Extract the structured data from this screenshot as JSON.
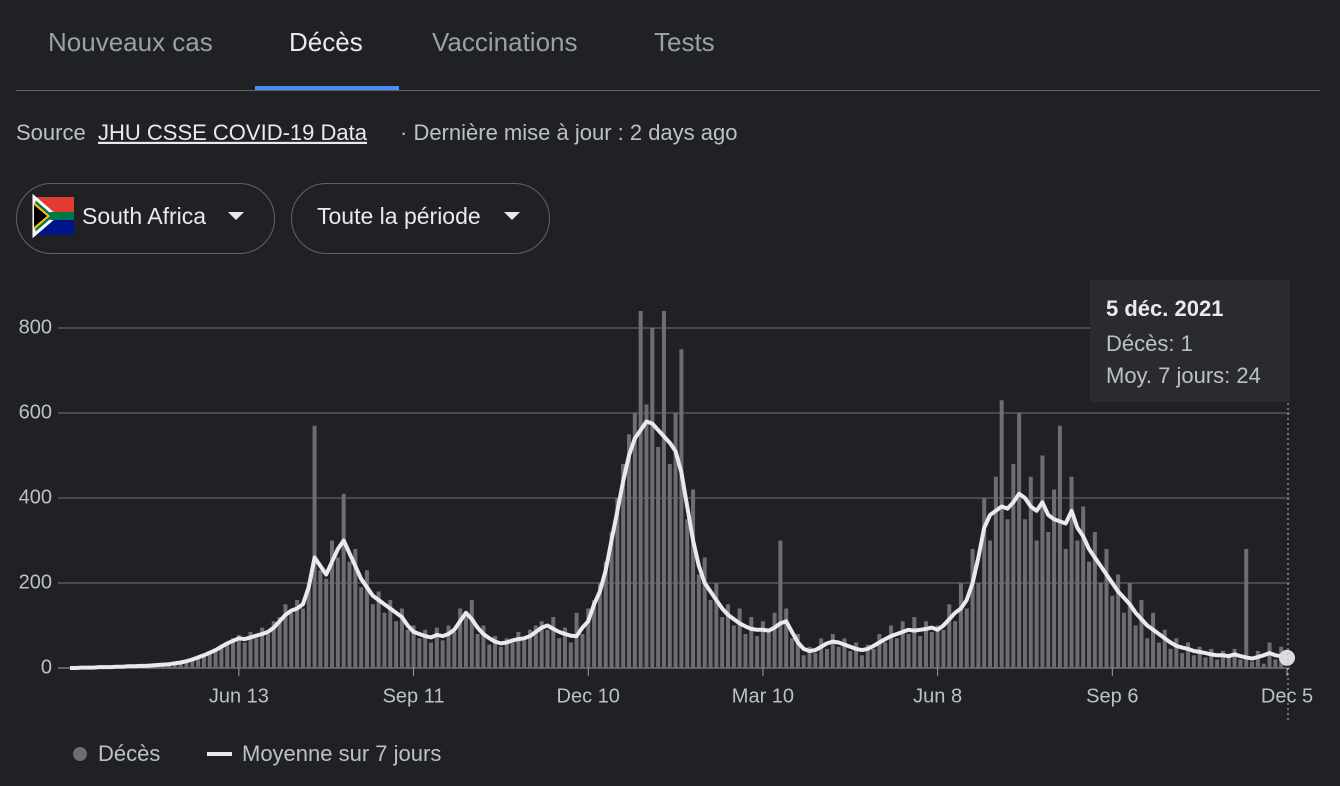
{
  "tabs": [
    "Nouveaux cas",
    "Décès",
    "Vaccinations",
    "Tests"
  ],
  "source": {
    "prefix": "Source",
    "link": "JHU CSSE COVID-19 Data",
    "suffix": "· Dernière mise à jour : 2 days ago"
  },
  "filters": {
    "region": "South Africa",
    "period": "Toute la période"
  },
  "tooltip": {
    "date": "5 déc. 2021",
    "lines": [
      "Décès: 1",
      "Moy. 7 jours: 24"
    ]
  },
  "chart_data": {
    "type": "bar",
    "categories": [
      null,
      null,
      null,
      null,
      null,
      null,
      null,
      null,
      null,
      null,
      null,
      null,
      null,
      null,
      null,
      null,
      null,
      null,
      null,
      null,
      null,
      null,
      null,
      null,
      null,
      null,
      null,
      null,
      null,
      "Jun 13",
      null,
      null,
      null,
      null,
      null,
      null,
      null,
      null,
      null,
      null,
      null,
      null,
      null,
      null,
      null,
      null,
      null,
      null,
      null,
      null,
      null,
      null,
      null,
      null,
      null,
      null,
      null,
      null,
      null,
      "Sep 11",
      null,
      null,
      null,
      null,
      null,
      null,
      null,
      null,
      null,
      null,
      null,
      null,
      null,
      null,
      null,
      null,
      null,
      null,
      null,
      null,
      null,
      null,
      null,
      null,
      null,
      null,
      null,
      null,
      null,
      "Dec 10",
      null,
      null,
      null,
      null,
      null,
      null,
      null,
      null,
      null,
      null,
      null,
      null,
      null,
      null,
      null,
      null,
      null,
      null,
      null,
      null,
      null,
      null,
      null,
      null,
      null,
      null,
      null,
      null,
      null,
      "Mar 10",
      null,
      null,
      null,
      null,
      null,
      null,
      null,
      null,
      null,
      null,
      null,
      null,
      null,
      null,
      null,
      null,
      null,
      null,
      null,
      null,
      null,
      null,
      null,
      null,
      null,
      null,
      null,
      null,
      null,
      "Jun 8",
      null,
      null,
      null,
      null,
      null,
      null,
      null,
      null,
      null,
      null,
      null,
      null,
      null,
      null,
      null,
      null,
      null,
      null,
      null,
      null,
      null,
      null,
      null,
      null,
      null,
      null,
      null,
      null,
      null,
      "Sep 6",
      null,
      null,
      null,
      null,
      null,
      null,
      null,
      null,
      null,
      null,
      null,
      null,
      null,
      null,
      null,
      null,
      null,
      null,
      null,
      null,
      null,
      null,
      null,
      null,
      null,
      null,
      null,
      null,
      null,
      "Dec 5"
    ],
    "series": [
      {
        "name": "Décès",
        "type": "bar",
        "color": "#6c6e72",
        "values": [
          0,
          0,
          0,
          1,
          1,
          2,
          1,
          3,
          2,
          4,
          3,
          5,
          4,
          6,
          7,
          6,
          9,
          10,
          12,
          15,
          14,
          22,
          28,
          26,
          40,
          38,
          55,
          60,
          70,
          78,
          60,
          85,
          70,
          95,
          80,
          110,
          120,
          150,
          130,
          160,
          140,
          200,
          570,
          230,
          210,
          300,
          260,
          410,
          250,
          280,
          190,
          230,
          150,
          180,
          130,
          160,
          110,
          140,
          90,
          100,
          70,
          90,
          60,
          95,
          65,
          100,
          85,
          140,
          120,
          160,
          80,
          100,
          55,
          75,
          50,
          70,
          60,
          85,
          65,
          90,
          100,
          110,
          90,
          120,
          70,
          95,
          60,
          130,
          80,
          140,
          160,
          200,
          250,
          320,
          400,
          480,
          550,
          600,
          840,
          620,
          800,
          520,
          840,
          480,
          600,
          750,
          350,
          420,
          220,
          260,
          160,
          200,
          120,
          150,
          100,
          140,
          80,
          120,
          75,
          110,
          90,
          130,
          300,
          140,
          70,
          80,
          30,
          50,
          35,
          70,
          45,
          80,
          50,
          70,
          40,
          60,
          30,
          55,
          45,
          80,
          60,
          100,
          70,
          110,
          80,
          120,
          75,
          110,
          85,
          100,
          90,
          150,
          110,
          200,
          140,
          280,
          200,
          400,
          300,
          450,
          630,
          350,
          480,
          600,
          350,
          450,
          300,
          500,
          320,
          420,
          570,
          280,
          450,
          300,
          380,
          250,
          320,
          200,
          280,
          170,
          220,
          130,
          200,
          100,
          160,
          70,
          130,
          60,
          90,
          45,
          70,
          35,
          60,
          30,
          50,
          25,
          45,
          20,
          40,
          25,
          45,
          20,
          280,
          15,
          40,
          10,
          60,
          20,
          50,
          1
        ]
      },
      {
        "name": "Moyenne sur 7 jours",
        "type": "line",
        "color": "#e8eaed",
        "values": [
          0,
          0,
          1,
          1,
          1,
          2,
          2,
          2,
          3,
          3,
          4,
          4,
          5,
          5,
          6,
          7,
          8,
          9,
          11,
          13,
          16,
          20,
          25,
          30,
          36,
          42,
          50,
          58,
          64,
          70,
          68,
          72,
          76,
          80,
          85,
          95,
          110,
          125,
          135,
          140,
          150,
          190,
          260,
          240,
          220,
          250,
          280,
          300,
          270,
          240,
          210,
          190,
          170,
          160,
          150,
          140,
          130,
          120,
          100,
          85,
          80,
          75,
          72,
          78,
          75,
          80,
          90,
          110,
          130,
          115,
          95,
          80,
          70,
          62,
          58,
          60,
          65,
          68,
          70,
          75,
          85,
          95,
          100,
          92,
          85,
          80,
          76,
          75,
          95,
          110,
          150,
          180,
          230,
          300,
          370,
          440,
          500,
          540,
          560,
          580,
          575,
          560,
          545,
          530,
          510,
          460,
          380,
          300,
          240,
          200,
          180,
          160,
          140,
          125,
          115,
          105,
          98,
          92,
          90,
          90,
          88,
          95,
          105,
          110,
          85,
          60,
          45,
          40,
          42,
          50,
          58,
          62,
          60,
          55,
          50,
          45,
          42,
          45,
          52,
          60,
          68,
          75,
          80,
          85,
          90,
          88,
          90,
          92,
          95,
          90,
          100,
          115,
          130,
          140,
          160,
          200,
          260,
          330,
          360,
          370,
          380,
          375,
          390,
          410,
          400,
          380,
          370,
          390,
          360,
          350,
          345,
          340,
          370,
          330,
          310,
          280,
          260,
          240,
          220,
          200,
          180,
          165,
          150,
          130,
          115,
          100,
          90,
          80,
          70,
          60,
          52,
          48,
          45,
          40,
          38,
          35,
          32,
          30,
          30,
          28,
          32,
          28,
          25,
          22,
          26,
          30,
          35,
          30,
          28,
          24
        ]
      }
    ],
    "ylim": [
      0,
      900
    ],
    "yticks": [
      0,
      200,
      400,
      600,
      800
    ],
    "grid": true
  }
}
